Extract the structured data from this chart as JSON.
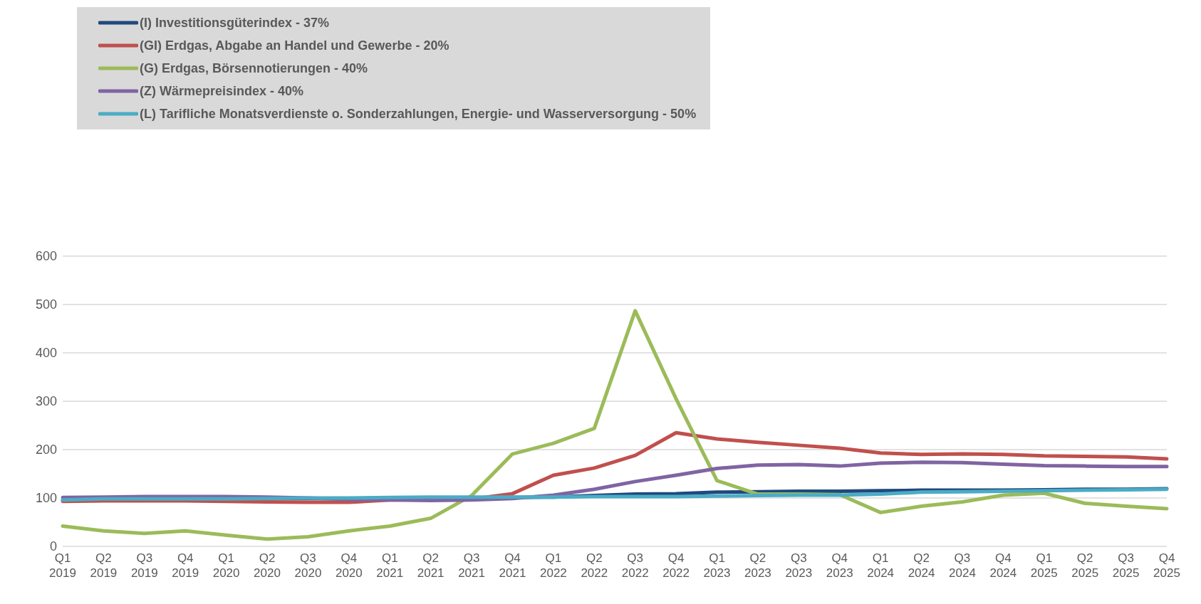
{
  "chart_data": {
    "type": "line",
    "categories": [
      "Q1\n2019",
      "Q2\n2019",
      "Q3\n2019",
      "Q4\n2019",
      "Q1\n2020",
      "Q2\n2020",
      "Q3\n2020",
      "Q4\n2020",
      "Q1\n2021",
      "Q2\n2021",
      "Q3\n2021",
      "Q4\n2021",
      "Q1\n2022",
      "Q2\n2022",
      "Q3\n2022",
      "Q4\n2022",
      "Q1\n2023",
      "Q2\n2023",
      "Q3\n2023",
      "Q4\n2023",
      "Q1\n2024",
      "Q2\n2024",
      "Q3\n2024",
      "Q4\n2024",
      "Q1\n2025",
      "Q2\n2025",
      "Q3\n2025",
      "Q4\n2025"
    ],
    "series": [
      {
        "name": "(I) Investitionsgüterindex - 37%",
        "color": "#1f497d",
        "values": [
          96,
          97,
          97,
          98,
          98,
          99,
          99,
          99,
          100,
          100,
          100,
          101,
          102,
          105,
          108,
          109,
          112,
          113,
          114,
          114,
          115,
          116,
          116,
          116,
          117,
          118,
          118,
          119
        ]
      },
      {
        "name": "(GI) Erdgas, Abgabe an Handel und Gewerbe - 20%",
        "color": "#c0504d",
        "values": [
          93,
          94,
          94,
          94,
          93,
          92,
          91,
          91,
          96,
          97,
          98,
          109,
          147,
          162,
          188,
          235,
          222,
          215,
          209,
          203,
          193,
          190,
          191,
          190,
          187,
          186,
          185,
          181
        ]
      },
      {
        "name": "(G) Erdgas, Börsennotierungen - 40%",
        "color": "#9bbb59",
        "values": [
          42,
          32,
          27,
          32,
          23,
          15,
          20,
          32,
          42,
          58,
          105,
          191,
          213,
          244,
          487,
          305,
          136,
          108,
          108,
          107,
          70,
          83,
          92,
          106,
          110,
          89,
          83,
          78
        ]
      },
      {
        "name": "(Z) Wärmepreisindex - 40%",
        "color": "#8064a2",
        "values": [
          101,
          102,
          103,
          103,
          103,
          102,
          100,
          97,
          96,
          95,
          96,
          99,
          106,
          118,
          134,
          147,
          161,
          168,
          169,
          166,
          172,
          174,
          173,
          170,
          167,
          166,
          165,
          165
        ]
      },
      {
        "name": "(L) Tarifliche Monatsverdienste o. Sonderzahlungen, Energie- und Wasserversorgung - 50%",
        "color": "#4bacc6",
        "values": [
          96,
          98,
          98,
          98,
          98,
          99,
          100,
          100,
          101,
          102,
          102,
          102,
          102,
          103,
          103,
          103,
          104,
          105,
          106,
          106,
          108,
          112,
          113,
          114,
          115,
          116,
          117,
          118
        ]
      }
    ],
    "ylim": [
      0,
      600
    ],
    "yticks": [
      0,
      100,
      200,
      300,
      400,
      500,
      600
    ],
    "grid": "y",
    "legend": "top left",
    "marker": "none",
    "line_style": "solid"
  }
}
